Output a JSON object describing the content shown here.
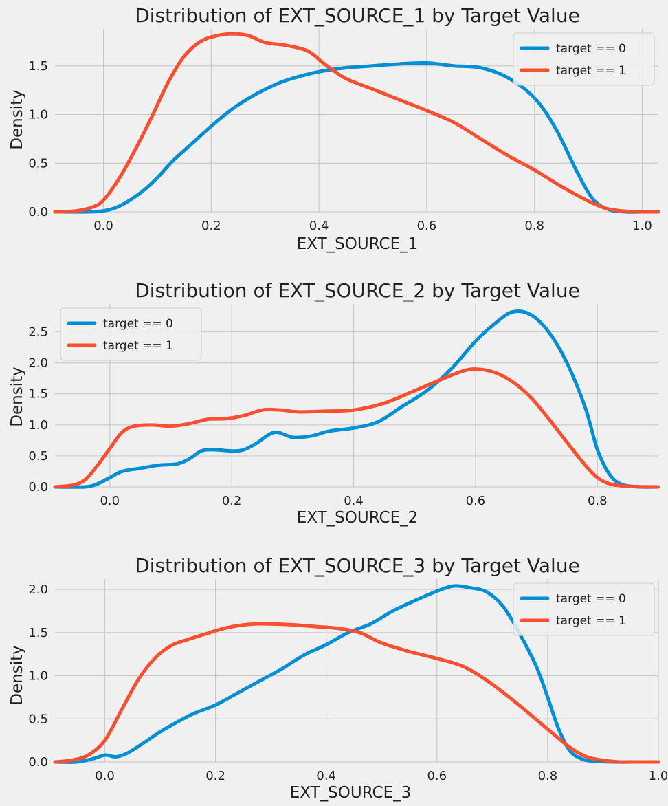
{
  "colors": {
    "series0": "#008fd5",
    "series1": "#fc4f30",
    "grid": "#cbcbcb",
    "background": "#f0f0f0"
  },
  "chart_data": [
    {
      "type": "line",
      "title": "Distribution of EXT_SOURCE_1 by Target Value",
      "xlabel": "EXT_SOURCE_1",
      "ylabel": "Density",
      "xlim": [
        -0.09,
        1.03
      ],
      "ylim": [
        0,
        1.88
      ],
      "xticks": [
        0.0,
        0.2,
        0.4,
        0.6,
        0.8,
        1.0
      ],
      "xtick_labels": [
        "0.0",
        "0.2",
        "0.4",
        "0.6",
        "0.8",
        "1.0"
      ],
      "yticks": [
        0.0,
        0.5,
        1.0,
        1.5
      ],
      "ytick_labels": [
        "0.0",
        "0.5",
        "1.0",
        "1.5"
      ],
      "legend_position": "top-right",
      "series": [
        {
          "name": "target == 0",
          "color": "#008fd5",
          "x": [
            -0.09,
            -0.03,
            0.0,
            0.03,
            0.07,
            0.1,
            0.13,
            0.17,
            0.2,
            0.24,
            0.28,
            0.32,
            0.35,
            0.4,
            0.45,
            0.5,
            0.55,
            0.6,
            0.65,
            0.7,
            0.75,
            0.8,
            0.84,
            0.88,
            0.91,
            0.94,
            0.97,
            1.0,
            1.03
          ],
          "y": [
            0.0,
            0.0,
            0.01,
            0.06,
            0.2,
            0.35,
            0.53,
            0.73,
            0.88,
            1.06,
            1.2,
            1.31,
            1.37,
            1.44,
            1.48,
            1.5,
            1.52,
            1.53,
            1.5,
            1.48,
            1.38,
            1.17,
            0.85,
            0.4,
            0.12,
            0.02,
            0.0,
            0.0,
            0.0
          ]
        },
        {
          "name": "target == 1",
          "color": "#fc4f30",
          "x": [
            -0.09,
            -0.05,
            -0.02,
            0.0,
            0.03,
            0.06,
            0.09,
            0.12,
            0.15,
            0.18,
            0.21,
            0.24,
            0.27,
            0.3,
            0.34,
            0.38,
            0.41,
            0.45,
            0.5,
            0.55,
            0.6,
            0.65,
            0.7,
            0.75,
            0.8,
            0.85,
            0.9,
            0.93,
            0.96,
            1.0,
            1.03
          ],
          "y": [
            0.0,
            0.01,
            0.05,
            0.12,
            0.35,
            0.65,
            0.98,
            1.33,
            1.6,
            1.75,
            1.81,
            1.83,
            1.81,
            1.74,
            1.71,
            1.65,
            1.52,
            1.37,
            1.26,
            1.15,
            1.04,
            0.92,
            0.75,
            0.58,
            0.43,
            0.26,
            0.11,
            0.04,
            0.01,
            0.0,
            0.0
          ]
        }
      ]
    },
    {
      "type": "line",
      "title": "Distribution of EXT_SOURCE_2 by Target Value",
      "xlabel": "EXT_SOURCE_2",
      "ylabel": "Density",
      "xlim": [
        -0.09,
        0.9
      ],
      "ylim": [
        0,
        2.95
      ],
      "xticks": [
        0.0,
        0.2,
        0.4,
        0.6,
        0.8
      ],
      "xtick_labels": [
        "0.0",
        "0.2",
        "0.4",
        "0.6",
        "0.8"
      ],
      "yticks": [
        0.0,
        0.5,
        1.0,
        1.5,
        2.0,
        2.5
      ],
      "ytick_labels": [
        "0.0",
        "0.5",
        "1.0",
        "1.5",
        "2.0",
        "2.5"
      ],
      "legend_position": "top-left",
      "series": [
        {
          "name": "target == 0",
          "color": "#008fd5",
          "x": [
            -0.09,
            -0.04,
            -0.02,
            0.0,
            0.02,
            0.05,
            0.08,
            0.11,
            0.13,
            0.15,
            0.17,
            0.2,
            0.22,
            0.24,
            0.27,
            0.3,
            0.33,
            0.36,
            0.4,
            0.44,
            0.48,
            0.52,
            0.56,
            0.6,
            0.63,
            0.66,
            0.69,
            0.72,
            0.75,
            0.78,
            0.8,
            0.82,
            0.84,
            0.87,
            0.9
          ],
          "y": [
            0.0,
            0.0,
            0.05,
            0.15,
            0.25,
            0.3,
            0.35,
            0.37,
            0.45,
            0.58,
            0.6,
            0.58,
            0.6,
            0.7,
            0.88,
            0.8,
            0.82,
            0.9,
            0.95,
            1.05,
            1.3,
            1.55,
            1.9,
            2.35,
            2.62,
            2.82,
            2.78,
            2.5,
            2.0,
            1.28,
            0.6,
            0.2,
            0.04,
            0.0,
            0.0
          ]
        },
        {
          "name": "target == 1",
          "color": "#fc4f30",
          "x": [
            -0.09,
            -0.06,
            -0.04,
            -0.02,
            0.0,
            0.02,
            0.04,
            0.07,
            0.1,
            0.13,
            0.16,
            0.19,
            0.22,
            0.25,
            0.28,
            0.31,
            0.35,
            0.4,
            0.45,
            0.5,
            0.55,
            0.58,
            0.6,
            0.63,
            0.66,
            0.69,
            0.72,
            0.75,
            0.78,
            0.8,
            0.82,
            0.85,
            0.9
          ],
          "y": [
            0.0,
            0.03,
            0.12,
            0.35,
            0.62,
            0.88,
            0.98,
            1.0,
            0.98,
            1.02,
            1.09,
            1.1,
            1.15,
            1.24,
            1.24,
            1.21,
            1.22,
            1.24,
            1.35,
            1.55,
            1.76,
            1.87,
            1.9,
            1.85,
            1.7,
            1.45,
            1.1,
            0.72,
            0.35,
            0.15,
            0.05,
            0.01,
            0.0
          ]
        }
      ]
    },
    {
      "type": "line",
      "title": "Distribution of EXT_SOURCE_3 by Target Value",
      "xlabel": "EXT_SOURCE_3",
      "ylabel": "Density",
      "xlim": [
        -0.09,
        1.0
      ],
      "ylim": [
        0,
        2.12
      ],
      "xticks": [
        0.0,
        0.2,
        0.4,
        0.6,
        0.8,
        1.0
      ],
      "xtick_labels": [
        "0.0",
        "0.2",
        "0.4",
        "0.6",
        "0.8",
        "1.0"
      ],
      "yticks": [
        0.0,
        0.5,
        1.0,
        1.5,
        2.0
      ],
      "ytick_labels": [
        "0.0",
        "0.5",
        "1.0",
        "1.5",
        "2.0"
      ],
      "legend_position": "top-right",
      "series": [
        {
          "name": "target == 0",
          "color": "#008fd5",
          "x": [
            -0.09,
            -0.05,
            -0.02,
            0.0,
            0.02,
            0.04,
            0.07,
            0.1,
            0.13,
            0.16,
            0.2,
            0.24,
            0.28,
            0.32,
            0.36,
            0.4,
            0.44,
            0.48,
            0.52,
            0.56,
            0.6,
            0.63,
            0.66,
            0.69,
            0.72,
            0.75,
            0.78,
            0.8,
            0.82,
            0.84,
            0.86,
            0.88,
            0.92,
            0.96,
            1.0
          ],
          "y": [
            0.0,
            0.0,
            0.04,
            0.08,
            0.06,
            0.1,
            0.22,
            0.35,
            0.46,
            0.56,
            0.66,
            0.8,
            0.94,
            1.08,
            1.24,
            1.36,
            1.5,
            1.6,
            1.75,
            1.87,
            1.98,
            2.04,
            2.02,
            1.97,
            1.8,
            1.48,
            1.1,
            0.75,
            0.38,
            0.13,
            0.04,
            0.01,
            0.0,
            0.0,
            0.0
          ]
        },
        {
          "name": "target == 1",
          "color": "#fc4f30",
          "x": [
            -0.09,
            -0.06,
            -0.03,
            0.0,
            0.03,
            0.06,
            0.09,
            0.12,
            0.15,
            0.18,
            0.21,
            0.24,
            0.27,
            0.3,
            0.34,
            0.38,
            0.42,
            0.46,
            0.5,
            0.55,
            0.6,
            0.65,
            0.7,
            0.75,
            0.8,
            0.84,
            0.87,
            0.9,
            0.93,
            0.96,
            1.0
          ],
          "y": [
            0.0,
            0.02,
            0.08,
            0.25,
            0.6,
            0.95,
            1.2,
            1.35,
            1.42,
            1.48,
            1.54,
            1.58,
            1.6,
            1.6,
            1.59,
            1.57,
            1.55,
            1.5,
            1.38,
            1.28,
            1.2,
            1.1,
            0.9,
            0.65,
            0.38,
            0.17,
            0.06,
            0.02,
            0.0,
            0.0,
            0.0
          ]
        }
      ]
    }
  ]
}
